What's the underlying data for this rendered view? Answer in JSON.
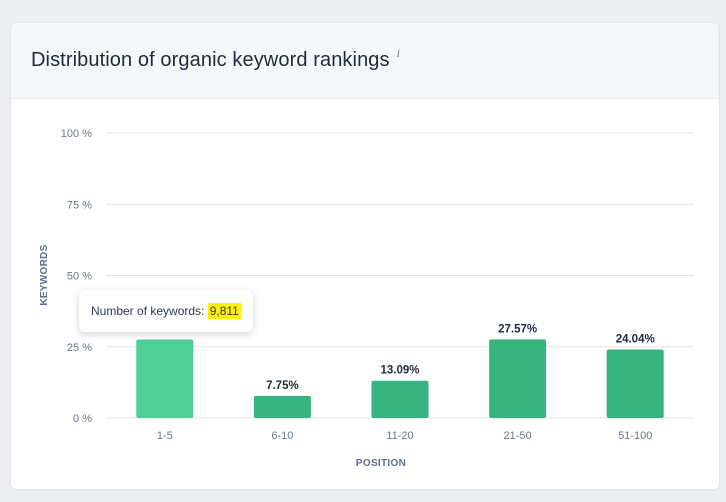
{
  "header": {
    "title": "Distribution of organic keyword rankings",
    "info_icon": "i"
  },
  "tooltip": {
    "label": "Number of keywords:",
    "value": "9,811"
  },
  "colors": {
    "bar": "#36b37e",
    "bar_hover": "#4fcf95",
    "grid": "#e3e6ea"
  },
  "chart_data": {
    "type": "bar",
    "xlabel": "POSITION",
    "ylabel": "KEYWORDS",
    "ylim": [
      0,
      100
    ],
    "y_ticks": [
      "0 %",
      "25 %",
      "50 %",
      "75 %",
      "100 %"
    ],
    "categories": [
      "1-5",
      "6-10",
      "11-20",
      "21-50",
      "51-100"
    ],
    "values": [
      27.55,
      7.75,
      13.09,
      27.57,
      24.04
    ],
    "value_labels": [
      "",
      "7.75%",
      "13.09%",
      "27.57%",
      "24.04%"
    ],
    "highlighted_index": 0,
    "grid": true
  }
}
